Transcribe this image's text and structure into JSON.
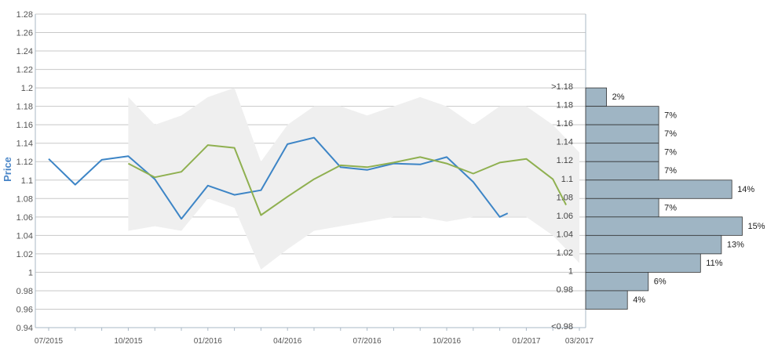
{
  "chart_data": {
    "type": "line",
    "ylabel": "Price",
    "ylim": [
      0.94,
      1.28
    ],
    "y_ticks": [
      "0.94",
      "0.96",
      "0.98",
      "1",
      "1.02",
      "1.04",
      "1.06",
      "1.08",
      "1.1",
      "1.12",
      "1.14",
      "1.16",
      "1.18",
      "1.2",
      "1.22",
      "1.24",
      "1.26",
      "1.28"
    ],
    "x_ticks": [
      "07/2015",
      "10/2015",
      "01/2016",
      "04/2016",
      "07/2016",
      "10/2016",
      "01/2017",
      "03/2017"
    ],
    "x_tick_months": [
      0,
      3,
      6,
      9,
      12,
      15,
      18,
      20
    ],
    "grid": true,
    "colors": {
      "actual": "#3d85c6",
      "forecast": "#8fb050",
      "band": "#efefef",
      "histogram": "#9fb5c4",
      "histogram_border": "#333333",
      "grid": "#c8c8c8",
      "axis": "#aab8c6"
    },
    "series": [
      {
        "key": "actual",
        "x_month": [
          0,
          1,
          2,
          3,
          4,
          5,
          6,
          7,
          8,
          9,
          10,
          11,
          12,
          13,
          14,
          15,
          16,
          17,
          17.3
        ],
        "values": [
          1.123,
          1.095,
          1.122,
          1.126,
          1.101,
          1.058,
          1.094,
          1.084,
          1.089,
          1.139,
          1.146,
          1.114,
          1.111,
          1.118,
          1.117,
          1.125,
          1.098,
          1.06,
          1.064
        ]
      },
      {
        "key": "forecast",
        "x_month": [
          3,
          4,
          5,
          6,
          7,
          8,
          9,
          10,
          11,
          12,
          13,
          14,
          15,
          16,
          17,
          18,
          19,
          19.5
        ],
        "values": [
          1.118,
          1.103,
          1.109,
          1.138,
          1.135,
          1.062,
          1.082,
          1.101,
          1.116,
          1.114,
          1.119,
          1.125,
          1.118,
          1.107,
          1.119,
          1.123,
          1.101,
          1.073
        ]
      }
    ],
    "band": {
      "x_month": [
        3,
        4,
        5,
        6,
        7,
        8,
        9,
        10,
        11,
        12,
        13,
        14,
        15,
        16,
        17,
        18,
        19,
        20
      ],
      "upper": [
        1.19,
        1.16,
        1.17,
        1.19,
        1.2,
        1.12,
        1.16,
        1.18,
        1.18,
        1.17,
        1.18,
        1.19,
        1.18,
        1.16,
        1.18,
        1.18,
        1.16,
        1.13
      ],
      "lower": [
        1.045,
        1.05,
        1.045,
        1.08,
        1.07,
        1.003,
        1.025,
        1.045,
        1.05,
        1.055,
        1.06,
        1.06,
        1.055,
        1.06,
        1.06,
        1.06,
        1.04,
        1.01
      ]
    },
    "histogram": {
      "buckets": [
        ">1.18",
        "1.18",
        "1.16",
        "1.14",
        "1.12",
        "1.1",
        "1.08",
        "1.06",
        "1.04",
        "1.02",
        "1",
        "0.98",
        "<0.98"
      ],
      "bucket_centers": [
        1.19,
        1.17,
        1.15,
        1.13,
        1.11,
        1.09,
        1.07,
        1.05,
        1.03,
        1.01,
        0.99,
        0.97,
        null
      ],
      "percent": [
        2,
        7,
        7,
        7,
        7,
        14,
        7,
        15,
        13,
        11,
        6,
        4,
        null
      ],
      "labels": [
        "2%",
        "7%",
        "7%",
        "7%",
        "7%",
        "14%",
        "7%",
        "15%",
        "13%",
        "11%",
        "6%",
        "4%",
        ""
      ]
    }
  }
}
